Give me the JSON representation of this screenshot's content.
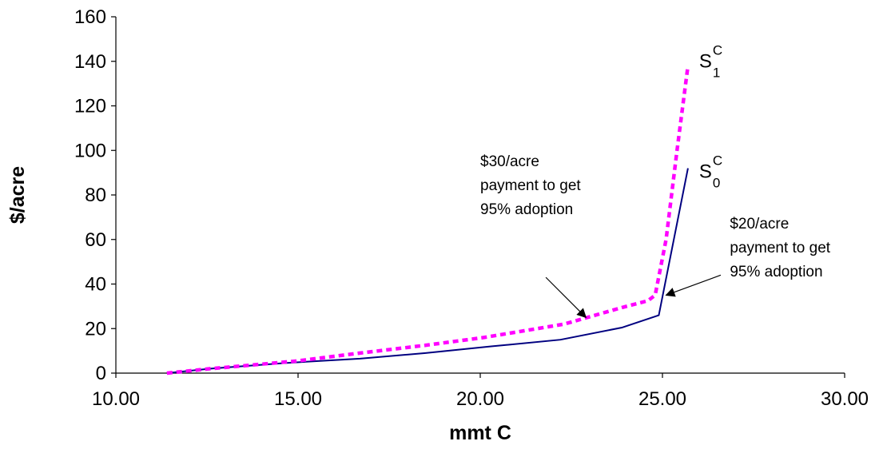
{
  "chart_data": {
    "type": "line",
    "xlabel": "mmt C",
    "ylabel": "$/acre",
    "xlim": [
      10,
      30
    ],
    "ylim": [
      0,
      160
    ],
    "x_ticks": [
      "10.00",
      "15.00",
      "20.00",
      "25.00",
      "30.00"
    ],
    "y_ticks": [
      "0",
      "20",
      "40",
      "60",
      "80",
      "100",
      "120",
      "140",
      "160"
    ],
    "grid": false,
    "series": [
      {
        "key": "s0",
        "label_main": "S",
        "label_sup": "C",
        "label_sub": "0",
        "color": "#000080",
        "style": "solid",
        "points": [
          [
            11.4,
            0
          ],
          [
            12.6,
            2
          ],
          [
            14.6,
            4.5
          ],
          [
            16.7,
            6.5
          ],
          [
            18.5,
            9
          ],
          [
            20.3,
            12
          ],
          [
            22.2,
            15
          ],
          [
            23.9,
            20.5
          ],
          [
            24.9,
            26
          ],
          [
            25.7,
            92
          ]
        ]
      },
      {
        "key": "s1",
        "label_main": "S",
        "label_sup": "C",
        "label_sub": "1",
        "color": "#ff00ff",
        "style": "dotted",
        "points": [
          [
            11.4,
            0
          ],
          [
            12.6,
            2
          ],
          [
            13.3,
            3
          ],
          [
            15.0,
            5.5
          ],
          [
            16.7,
            9
          ],
          [
            18.5,
            12.5
          ],
          [
            20.1,
            16
          ],
          [
            22.3,
            22
          ],
          [
            23.9,
            29.5
          ],
          [
            24.6,
            32.5
          ],
          [
            24.8,
            35
          ],
          [
            25.1,
            60
          ],
          [
            25.4,
            100
          ],
          [
            25.7,
            138
          ]
        ]
      }
    ],
    "annotations": [
      {
        "key": "a30",
        "lines": [
          "$30/acre",
          "payment to get",
          "95% adoption"
        ],
        "text_x": 20.0,
        "text_y": 93,
        "arrow_from": [
          21.8,
          43
        ],
        "arrow_to": [
          22.9,
          25
        ]
      },
      {
        "key": "a20",
        "lines": [
          "$20/acre",
          "payment to get",
          "95% adoption"
        ],
        "text_x": 26.85,
        "text_y": 65,
        "arrow_from": [
          26.6,
          44
        ],
        "arrow_to": [
          25.1,
          35
        ]
      }
    ]
  }
}
